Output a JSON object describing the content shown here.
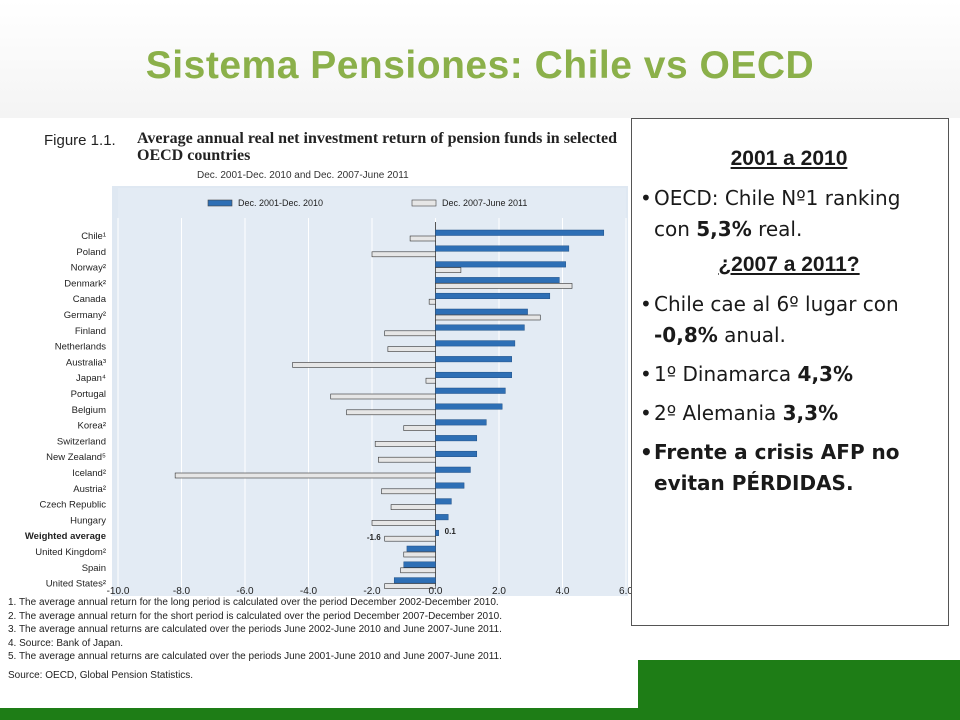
{
  "slide": {
    "title": "Sistema Pensiones: Chile vs OECD"
  },
  "figure": {
    "number": "Figure 1.1.",
    "title": "Average annual real net investment return of pension funds in selected OECD countries",
    "subtitle": "Dec. 2001-Dec. 2010 and Dec. 2007-June 2011",
    "notes": [
      "1.  The average annual return for the long period is calculated over the period December 2002-December 2010.",
      "2.  The average annual return for the short period is calculated over the period December 2007-December 2010.",
      "3.  The average annual returns are calculated over the periods June 2002-June 2010 and June 2007-June 2011.",
      "4.  Source: Bank of Japan.",
      "5.  The average annual returns are calculated over the periods June 2001-June 2010 and June 2007-June 2011."
    ],
    "source": "Source:  OECD, Global Pension Statistics."
  },
  "chart_data": {
    "type": "bar",
    "orientation": "horizontal",
    "categories": [
      "Chile¹",
      "Poland",
      "Norway²",
      "Denmark²",
      "Canada",
      "Germany²",
      "Finland",
      "Netherlands",
      "Australia³",
      "Japan⁴",
      "Portugal",
      "Belgium",
      "Korea²",
      "Switzerland",
      "New Zealand⁵",
      "Iceland²",
      "Austria²",
      "Czech Republic",
      "Hungary",
      "Weighted average",
      "United Kingdom²",
      "Spain",
      "United States²"
    ],
    "series": [
      {
        "name": "Dec. 2001-Dec. 2010",
        "color": "#2e6fb5",
        "values": [
          5.3,
          4.2,
          4.1,
          3.9,
          3.6,
          2.9,
          2.8,
          2.5,
          2.4,
          2.4,
          2.2,
          2.1,
          1.6,
          1.3,
          1.3,
          1.1,
          0.9,
          0.5,
          0.4,
          0.1,
          -0.9,
          -1.0,
          -1.3
        ]
      },
      {
        "name": "Dec. 2007-June 2011",
        "color": "#e6e6e6",
        "values": [
          -0.8,
          -2.0,
          0.8,
          4.3,
          -0.2,
          3.3,
          -1.6,
          -1.5,
          -4.5,
          -0.3,
          -3.3,
          -2.8,
          -1.0,
          -1.9,
          -1.8,
          -8.2,
          -1.7,
          -1.4,
          -2.0,
          -1.6,
          -1.0,
          -1.1,
          -1.6
        ]
      }
    ],
    "annotations": [
      "-1.6",
      "0.1"
    ],
    "xlim": [
      -10.0,
      6.0
    ],
    "xticks": [
      -10.0,
      -8.0,
      -6.0,
      -4.0,
      -2.0,
      0.0,
      2.0,
      4.0,
      6.0
    ],
    "xtick_labels": [
      "-10.0",
      "-8.0",
      "-6.0",
      "-4.0",
      "-2.0",
      "0.0",
      "2.0",
      "4.0",
      "6.0"
    ],
    "xunit": "%",
    "grid": true,
    "legend_position": "top"
  },
  "textbox": {
    "heading1": "2001 a 2010",
    "b1_pre": "OECD: Chile Nº1 ranking con ",
    "b1_bold": "5,3%",
    "b1_post": " real.",
    "heading2": "¿2007 a 2011?",
    "b2_pre": "Chile cae al 6º lugar con ",
    "b2_bold": "-0,8%",
    "b2_post": " anual.",
    "b3_pre": "1º Dinamarca ",
    "b3_bold": "4,3%",
    "b4_pre": "2º Alemania ",
    "b4_bold": "3,3%",
    "b5": "Frente a crisis AFP no evitan PÉRDIDAS.",
    "bullet_char": "•"
  }
}
